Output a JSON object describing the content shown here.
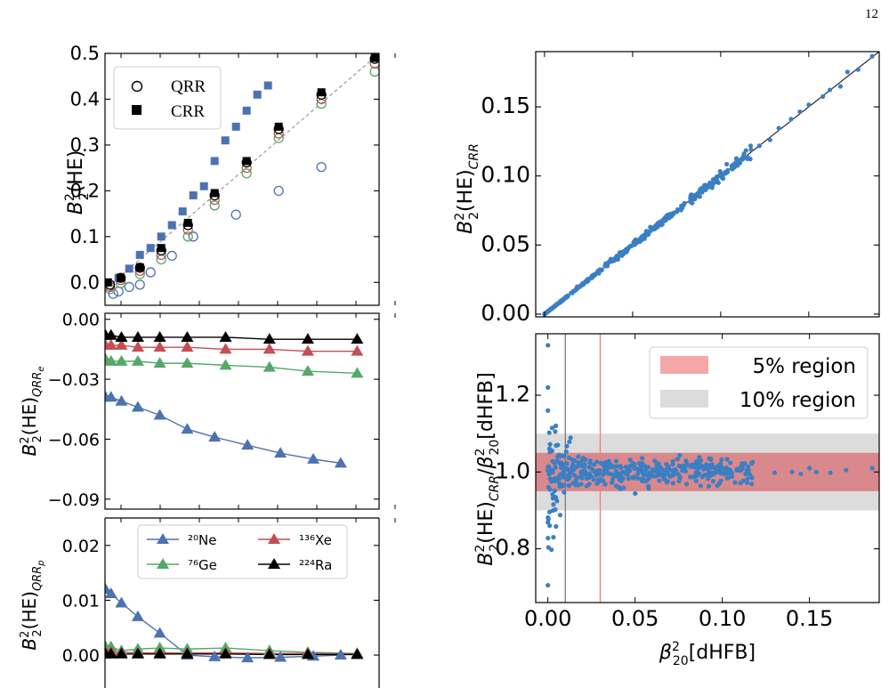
{
  "page_number": "12",
  "chart_data": [
    {
      "id": "top-left",
      "type": "scatter",
      "ylabel": "B₂²(HE)",
      "ylim": [
        -0.05,
        0.5
      ],
      "yticks": [
        0.0,
        0.1,
        0.2,
        0.3,
        0.4,
        0.5
      ],
      "ytick_labels": [
        "0.0",
        "0.1",
        "0.2",
        "0.3",
        "0.4",
        "0.5"
      ],
      "grid": false,
      "legend_position": "top-left",
      "legend": [
        "QRR",
        "CRR"
      ],
      "series": [
        {
          "name": "QRR",
          "marker": "open-circle",
          "color": "#4c72b0",
          "x": [
            0.005,
            0.01,
            0.02,
            0.03,
            0.04,
            0.06,
            0.08,
            0.12,
            0.16,
            0.2,
            0.26,
            0.32,
            0.36
          ],
          "y": [
            -0.025,
            -0.02,
            -0.01,
            -0.005,
            0.022,
            0.058,
            0.1,
            0.148,
            0.2,
            0.252,
            0.302,
            0.357,
            0.0
          ]
        },
        {
          "name": "QRR",
          "marker": "open-circle",
          "color": "#55a868",
          "x": [
            0.002,
            0.012,
            0.03,
            0.05,
            0.075,
            0.1,
            0.13,
            0.16,
            0.2,
            0.25,
            0.3
          ],
          "y": [
            -0.015,
            -0.002,
            0.018,
            0.05,
            0.1,
            0.168,
            0.238,
            0.315,
            0.39,
            0.46,
            0.0
          ]
        },
        {
          "name": "QRR",
          "marker": "open-circle",
          "color": "#c44e52",
          "x": [
            0.002,
            0.012,
            0.03,
            0.05,
            0.075,
            0.1,
            0.13,
            0.16,
            0.2,
            0.25
          ],
          "y": [
            -0.01,
            0.005,
            0.025,
            0.06,
            0.115,
            0.18,
            0.25,
            0.325,
            0.4,
            0.478
          ]
        },
        {
          "name": "QRR",
          "marker": "open-circle",
          "color": "#000000",
          "x": [
            0.002,
            0.012,
            0.03,
            0.05,
            0.075,
            0.1,
            0.13,
            0.16,
            0.2,
            0.25
          ],
          "y": [
            -0.005,
            0.01,
            0.032,
            0.07,
            0.125,
            0.19,
            0.262,
            0.335,
            0.41,
            0.488
          ]
        },
        {
          "name": "CRR",
          "marker": "square",
          "color": "#4c72b0",
          "x": [
            0.0,
            0.01,
            0.02,
            0.03,
            0.04,
            0.05,
            0.06,
            0.07,
            0.08,
            0.09,
            0.1,
            0.11,
            0.12,
            0.13,
            0.14,
            0.15
          ],
          "y": [
            0.0,
            0.01,
            0.03,
            0.06,
            0.075,
            0.1,
            0.125,
            0.155,
            0.19,
            0.21,
            0.265,
            0.31,
            0.34,
            0.375,
            0.41,
            0.43
          ]
        },
        {
          "name": "CRR",
          "marker": "square",
          "color": "#000000",
          "x": [
            0.0,
            0.012,
            0.03,
            0.05,
            0.075,
            0.1,
            0.13,
            0.16,
            0.2,
            0.25
          ],
          "y": [
            0.0,
            0.01,
            0.033,
            0.075,
            0.13,
            0.195,
            0.265,
            0.34,
            0.415,
            0.49
          ]
        }
      ]
    },
    {
      "id": "middle-left",
      "type": "line",
      "ylabel": "B₂²(HE)QRRe",
      "ylim": [
        -0.095,
        0.003
      ],
      "yticks": [
        0.0,
        -0.03,
        -0.06,
        -0.09
      ],
      "ytick_labels": [
        "0.00",
        "−0.03",
        "−0.06",
        "−0.09"
      ],
      "grid": false,
      "series": [
        {
          "name": "²⁰Ne",
          "color": "#4c72b0",
          "x": [
            0.001,
            0.011,
            0.03,
            0.06,
            0.1,
            0.15,
            0.2,
            0.26,
            0.32,
            0.38,
            0.43
          ],
          "y": [
            -0.039,
            -0.039,
            -0.041,
            -0.044,
            -0.048,
            -0.055,
            -0.059,
            -0.063,
            -0.067,
            -0.07,
            -0.072
          ]
        },
        {
          "name": "⁷⁶Ge",
          "color": "#55a868",
          "x": [
            0.001,
            0.011,
            0.03,
            0.06,
            0.1,
            0.15,
            0.22,
            0.3,
            0.37,
            0.46
          ],
          "y": [
            -0.02,
            -0.021,
            -0.021,
            -0.021,
            -0.022,
            -0.022,
            -0.023,
            -0.024,
            -0.026,
            -0.027
          ]
        },
        {
          "name": "¹³⁶Xe",
          "color": "#c44e52",
          "x": [
            0.001,
            0.011,
            0.03,
            0.06,
            0.1,
            0.15,
            0.22,
            0.3,
            0.37,
            0.46
          ],
          "y": [
            -0.013,
            -0.013,
            -0.013,
            -0.014,
            -0.014,
            -0.014,
            -0.015,
            -0.015,
            -0.016,
            -0.016
          ]
        },
        {
          "name": "²²⁴Ra",
          "color": "#000000",
          "x": [
            0.001,
            0.011,
            0.03,
            0.06,
            0.1,
            0.15,
            0.22,
            0.3,
            0.37,
            0.46
          ],
          "y": [
            -0.008,
            -0.008,
            -0.009,
            -0.009,
            -0.009,
            -0.009,
            -0.009,
            -0.01,
            -0.01,
            -0.01
          ]
        }
      ]
    },
    {
      "id": "bottom-left",
      "type": "line",
      "ylabel": "B₂²(HE)QRRp",
      "ylim": [
        -0.006,
        0.025
      ],
      "yticks": [
        0.0,
        0.01,
        0.02
      ],
      "ytick_labels": [
        "0.00",
        "0.01",
        "0.02"
      ],
      "grid": false,
      "legend_position": "top-center",
      "series": [
        {
          "name": "²⁰Ne",
          "color": "#4c72b0",
          "x": [
            0.001,
            0.011,
            0.03,
            0.06,
            0.1,
            0.15,
            0.2,
            0.26,
            0.32,
            0.38,
            0.43
          ],
          "y": [
            0.012,
            0.0112,
            0.0095,
            0.007,
            0.004,
            0.0,
            -0.0003,
            -0.0005,
            -0.0004,
            -0.0002,
            0.0
          ]
        },
        {
          "name": "⁷⁶Ge",
          "color": "#55a868",
          "x": [
            0.001,
            0.011,
            0.03,
            0.06,
            0.1,
            0.15,
            0.22,
            0.3,
            0.37,
            0.46
          ],
          "y": [
            0.0015,
            0.0015,
            0.0008,
            0.0011,
            0.0013,
            0.0011,
            0.0013,
            0.0008,
            0.0005,
            0.0003
          ]
        },
        {
          "name": "¹³⁶Xe",
          "color": "#c44e52",
          "x": [
            0.001,
            0.011,
            0.03,
            0.06,
            0.1,
            0.15,
            0.22,
            0.3,
            0.37,
            0.46
          ],
          "y": [
            0.0006,
            0.0006,
            0.0005,
            0.0004,
            0.0004,
            0.0004,
            0.0004,
            0.0003,
            0.0003,
            0.0002
          ]
        },
        {
          "name": "²²⁴Ra",
          "color": "#000000",
          "x": [
            0.001,
            0.011,
            0.03,
            0.06,
            0.1,
            0.15,
            0.22,
            0.3,
            0.37,
            0.46
          ],
          "y": [
            0.0002,
            0.0002,
            0.0002,
            0.0002,
            0.0002,
            0.0002,
            0.0002,
            0.0001,
            0.0001,
            0.0001
          ]
        }
      ]
    },
    {
      "id": "top-right",
      "type": "scatter",
      "ylabel": "B₂²(HE)CRR",
      "xlim": [
        -0.005,
        0.19
      ],
      "ylim": [
        -0.002,
        0.19
      ],
      "yticks": [
        0.0,
        0.05,
        0.1,
        0.15
      ],
      "ytick_labels": [
        "0.00",
        "0.05",
        "0.10",
        "0.15"
      ],
      "grid": false,
      "series": [
        {
          "name": "",
          "color": "#3a7fc4",
          "points": "y≈x, 0 to 0.186"
        }
      ]
    },
    {
      "id": "bottom-right",
      "type": "scatter",
      "xlabel": "β₂₀²[dHFB]",
      "ylabel": "B₂²(HE)CRR/β₂₀²[dHFB]",
      "xlim": [
        -0.007,
        0.19
      ],
      "ylim": [
        0.66,
        1.36
      ],
      "xticks": [
        0.0,
        0.05,
        0.1,
        0.15
      ],
      "xtick_labels": [
        "0.00",
        "0.05",
        "0.10",
        "0.15"
      ],
      "yticks": [
        0.8,
        1.0,
        1.2
      ],
      "ytick_labels": [
        "0.8",
        "1.0",
        "1.2"
      ],
      "grid": false,
      "legend_position": "top-right",
      "legend": [
        "5% region",
        "10% region"
      ],
      "bands": [
        {
          "label": "5% region",
          "low": 0.95,
          "high": 1.05,
          "color": "#f4a7a9"
        },
        {
          "label": "10% region",
          "low": 0.9,
          "high": 1.1,
          "color": "#dcdcdc"
        }
      ],
      "vlines": [
        {
          "x": 0.01,
          "color": "#808080"
        },
        {
          "x": 0.03,
          "color": "#f08080"
        }
      ],
      "series": [
        {
          "name": "",
          "color": "#3a7fc4",
          "points": "scatter around 1.0, wider spread at small x"
        }
      ]
    }
  ]
}
